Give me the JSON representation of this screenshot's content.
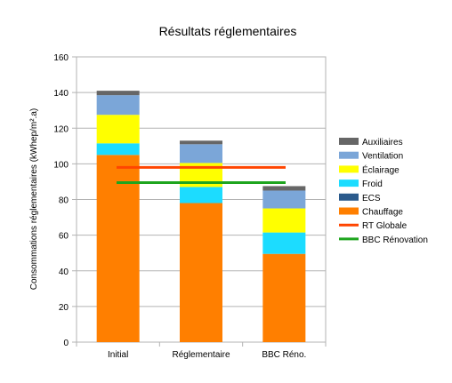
{
  "chart_data": {
    "type": "bar",
    "stacked": true,
    "title": "Résultats réglementaires",
    "ylabel": "Consommations réglementaires (kWhep/m².a)",
    "xlabel": "",
    "ylim": [
      0,
      160
    ],
    "yticks": [
      0,
      20,
      40,
      60,
      80,
      100,
      120,
      140,
      160
    ],
    "grid": true,
    "legend_position": "right",
    "categories": [
      "Initial",
      "Réglementaire",
      "BBC Réno."
    ],
    "series": [
      {
        "name": "Chauffage",
        "color": "#ff7f00",
        "values": [
          105,
          78,
          49.5
        ]
      },
      {
        "name": "ECS",
        "color": "#2a5a8c",
        "values": [
          0,
          0,
          0
        ]
      },
      {
        "name": "Froid",
        "color": "#1cdcff",
        "values": [
          6.5,
          9,
          12
        ]
      },
      {
        "name": "Éclairage",
        "color": "#ffff00",
        "values": [
          16,
          13.5,
          13.5
        ]
      },
      {
        "name": "Ventilation",
        "color": "#7ba6d8",
        "values": [
          11,
          10.5,
          10
        ]
      },
      {
        "name": "Auxiliaires",
        "color": "#666666",
        "values": [
          2.5,
          2,
          2.5
        ]
      }
    ],
    "legend_order": [
      "Auxiliaires",
      "Ventilation",
      "Éclairage",
      "Froid",
      "ECS",
      "Chauffage",
      "RT Globale",
      "BBC Rénovation"
    ],
    "reference_lines": [
      {
        "name": "RT Globale",
        "color": "#ff4500",
        "y": 98
      },
      {
        "name": "BBC Rénovation",
        "color": "#1ea51e",
        "y": 89.5
      }
    ]
  }
}
